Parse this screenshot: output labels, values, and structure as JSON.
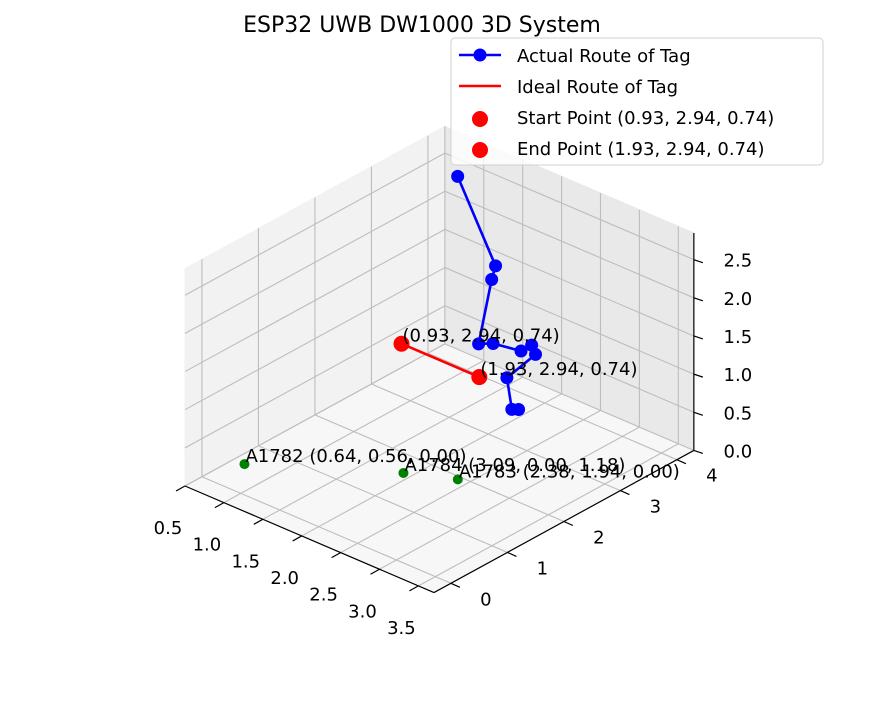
{
  "chart_data": {
    "type": "scatter",
    "title": "ESP32 UWB DW1000 3D System",
    "projection": "3d",
    "grid": true,
    "legend_position": "top-right",
    "axes": {
      "x": {
        "range": [
          0.5,
          3.7
        ],
        "ticks": [
          "0.5",
          "1.0",
          "1.5",
          "2.0",
          "2.5",
          "3.0",
          "3.5"
        ],
        "tick_values": [
          0.5,
          1.0,
          1.5,
          2.0,
          2.5,
          3.0,
          3.5
        ]
      },
      "y": {
        "range": [
          -0.3,
          4.3
        ],
        "ticks": [
          "0",
          "1",
          "2",
          "3",
          "4"
        ],
        "tick_values": [
          0,
          1,
          2,
          3,
          4
        ]
      },
      "z": {
        "range": [
          0,
          2.85
        ],
        "ticks": [
          "0.0",
          "0.5",
          "1.0",
          "1.5",
          "2.0",
          "2.5"
        ],
        "tick_values": [
          0,
          0.5,
          1.0,
          1.5,
          2.0,
          2.5
        ]
      }
    },
    "series": [
      {
        "name": "Actual Route of Tag",
        "kind": "line-markers",
        "color": "#0000ff",
        "points": [
          [
            1.1,
            3.7,
            2.7
          ],
          [
            1.95,
            3.2,
            2.1
          ],
          [
            1.9,
            3.2,
            1.9
          ],
          [
            1.95,
            2.9,
            1.2
          ],
          [
            2.1,
            2.95,
            1.25
          ],
          [
            2.35,
            3.1,
            1.2
          ],
          [
            2.45,
            3.15,
            1.3
          ],
          [
            2.5,
            3.15,
            1.2
          ],
          [
            2.35,
            2.85,
            0.95
          ],
          [
            2.45,
            2.8,
            0.6
          ],
          [
            2.5,
            2.85,
            0.6
          ]
        ]
      },
      {
        "name": "Ideal Route of Tag",
        "kind": "line",
        "color": "#ff0000",
        "points": [
          [
            0.93,
            2.94,
            0.74
          ],
          [
            1.93,
            2.94,
            0.74
          ]
        ]
      },
      {
        "name": "Start Point (0.93, 2.94, 0.74)",
        "kind": "scatter",
        "color": "#ff0000",
        "points": [
          [
            0.93,
            2.94,
            0.74
          ]
        ],
        "annotation": "(0.93, 2.94, 0.74)"
      },
      {
        "name": "End Point (1.93, 2.94, 0.74)",
        "kind": "scatter",
        "color": "#ff0000",
        "points": [
          [
            1.93,
            2.94,
            0.74
          ]
        ],
        "annotation": "(1.93, 2.94, 0.74)"
      }
    ],
    "anchors": {
      "color": "#008000",
      "points": [
        {
          "x": 0.64,
          "y": 0.56,
          "z": 0.0,
          "label": "A1782 (0.64, 0.56, 0.00)"
        },
        {
          "x": 2.38,
          "y": 1.94,
          "z": 0.0,
          "label": "A1783 (2.38, 1.94, 0.00)"
        },
        {
          "x": 3.09,
          "y": 0.0,
          "z": 1.18,
          "label": "A1784 (3.09, 0.00, 1.18)"
        }
      ]
    }
  }
}
